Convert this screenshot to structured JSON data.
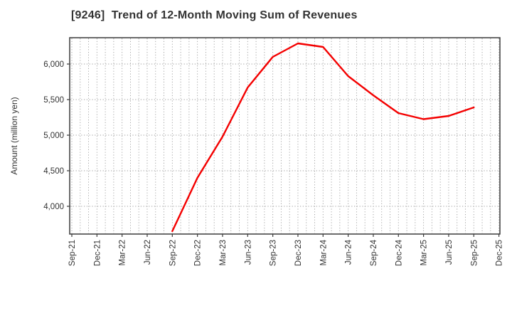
{
  "chart_data": {
    "type": "line",
    "title": "[9246]  Trend of 12-Month Moving Sum of Revenues",
    "ylabel": "Amount (million yen)",
    "xlabel": "",
    "grid": true,
    "legend_position": "none",
    "x_tick_labels": [
      "Sep-21",
      "Dec-21",
      "Mar-22",
      "Jun-22",
      "Sep-22",
      "Dec-22",
      "Mar-23",
      "Jun-23",
      "Sep-23",
      "Dec-23",
      "Mar-24",
      "Jun-24",
      "Sep-24",
      "Dec-24",
      "Mar-25",
      "Jun-25",
      "Sep-25",
      "Dec-25"
    ],
    "y_ticks": [
      4000,
      4500,
      5000,
      5500,
      6000
    ],
    "y_tick_labels": [
      "4,000",
      "4,500",
      "5,000",
      "5,500",
      "6,000"
    ],
    "ylim": [
      3610,
      6370
    ],
    "series": [
      {
        "name": "12-Month Moving Sum of Revenues",
        "color": "#f40000",
        "points": [
          {
            "x": "Sep-22",
            "value": 3650
          },
          {
            "x": "Dec-22",
            "value": 4400
          },
          {
            "x": "Mar-23",
            "value": 4980
          },
          {
            "x": "Jun-23",
            "value": 5670
          },
          {
            "x": "Sep-23",
            "value": 6100
          },
          {
            "x": "Dec-23",
            "value": 6290
          },
          {
            "x": "Mar-24",
            "value": 6240
          },
          {
            "x": "Jun-24",
            "value": 5830
          },
          {
            "x": "Sep-24",
            "value": 5560
          },
          {
            "x": "Dec-24",
            "value": 5310
          },
          {
            "x": "Mar-25",
            "value": 5225
          },
          {
            "x": "Jun-25",
            "value": 5270
          },
          {
            "x": "Sep-25",
            "value": 5390
          }
        ]
      }
    ],
    "colors": {
      "grid": "#9b9b9b",
      "spine": "#3a3a3a",
      "text": "#333333",
      "background": "#ffffff",
      "line": "#f40000"
    }
  }
}
